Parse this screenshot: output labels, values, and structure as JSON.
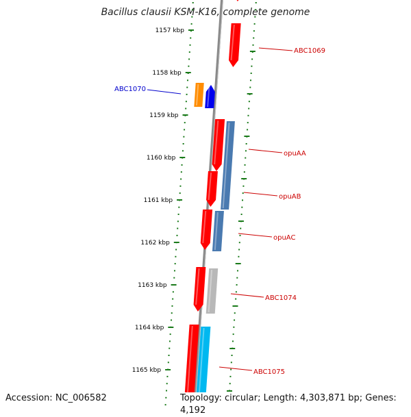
{
  "title": "Bacillus clausii KSM-K16, complete genome",
  "footer": {
    "accession": "Accession: NC_006582",
    "stats": "Topology: circular; Length: 4,303,871 bp; Genes: 4,192"
  },
  "colors": {
    "backbone": "#8a8a8a",
    "ticks": "#1a7a1a",
    "label_red": "#cc0000",
    "label_blue": "#0000cc",
    "red": "#ff0000",
    "orange": "#ff8c00",
    "blue": "#0000ee",
    "steel": "#4a7ab0",
    "gray": "#b8b8b8",
    "cyan": "#00b8f0"
  },
  "scale_labels": [
    "1157 kbp",
    "1158 kbp",
    "1159 kbp",
    "1160 kbp",
    "1161 kbp",
    "1162 kbp",
    "1163 kbp",
    "1164 kbp",
    "1165 kbp"
  ],
  "gene_labels": [
    {
      "text": "ABC1069",
      "color": "label_red"
    },
    {
      "text": "ABC1070",
      "color": "label_blue"
    },
    {
      "text": "opuAA",
      "color": "label_red"
    },
    {
      "text": "opuAB",
      "color": "label_red"
    },
    {
      "text": "opuAC",
      "color": "label_red"
    },
    {
      "text": "ABC1074",
      "color": "label_red"
    },
    {
      "text": "ABC1075",
      "color": "label_red"
    }
  ],
  "genes": [
    {
      "color": "red"
    },
    {
      "color": "red"
    },
    {
      "color": "orange"
    },
    {
      "color": "blue"
    },
    {
      "color": "red"
    },
    {
      "color": "steel"
    },
    {
      "color": "red"
    },
    {
      "color": "red"
    },
    {
      "color": "steel"
    },
    {
      "color": "red"
    },
    {
      "color": "gray"
    },
    {
      "color": "red"
    },
    {
      "color": "cyan"
    },
    {
      "color": "red"
    }
  ]
}
